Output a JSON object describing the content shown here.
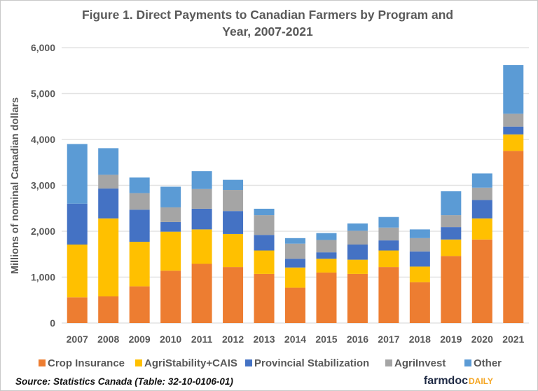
{
  "chart_data": {
    "type": "bar",
    "stacked": true,
    "title_lines": [
      "Figure 1. Direct Payments to Canadian Farmers by Program and",
      "Year, 2007-2021"
    ],
    "xlabel": "",
    "ylabel": "Millions of nominal Canadian dollars",
    "ylim": [
      0,
      6000
    ],
    "yticks": [
      0,
      1000,
      2000,
      3000,
      4000,
      5000,
      6000
    ],
    "ytick_labels": [
      "0",
      "1,000",
      "2,000",
      "3,000",
      "4,000",
      "5,000",
      "6,000"
    ],
    "grid": true,
    "legend_position": "bottom",
    "categories": [
      "2007",
      "2008",
      "2009",
      "2010",
      "2011",
      "2012",
      "2013",
      "2014",
      "2015",
      "2016",
      "2017",
      "2018",
      "2019",
      "2020",
      "2021"
    ],
    "series": [
      {
        "name": "Crop Insurance",
        "color": "#ED7D31",
        "values": [
          560,
          580,
          800,
          1140,
          1290,
          1220,
          1070,
          770,
          1100,
          1070,
          1220,
          890,
          1460,
          1820,
          3750
        ]
      },
      {
        "name": "AgriStability+CAIS",
        "color": "#FFC000",
        "values": [
          1150,
          1700,
          970,
          850,
          750,
          720,
          510,
          440,
          300,
          310,
          360,
          340,
          360,
          460,
          360
        ]
      },
      {
        "name": "Provincial Stabilization",
        "color": "#4472C4",
        "values": [
          890,
          650,
          700,
          210,
          450,
          500,
          340,
          190,
          140,
          330,
          220,
          330,
          270,
          400,
          170
        ]
      },
      {
        "name": "AgriInvest",
        "color": "#A5A5A5",
        "values": [
          0,
          300,
          360,
          320,
          430,
          460,
          430,
          330,
          270,
          300,
          280,
          290,
          260,
          270,
          280
        ]
      },
      {
        "name": "Other",
        "color": "#5B9BD5",
        "values": [
          1300,
          580,
          340,
          450,
          390,
          220,
          140,
          120,
          150,
          160,
          230,
          190,
          520,
          310,
          1060
        ]
      }
    ]
  },
  "source": "Source: Statistics  Canada (Table: 32-10-0106-01)",
  "logo": {
    "text_main": "farmdoc",
    "text_accent": "DAILY",
    "color_main": "#1f2a44",
    "color_accent": "#F5A623"
  }
}
